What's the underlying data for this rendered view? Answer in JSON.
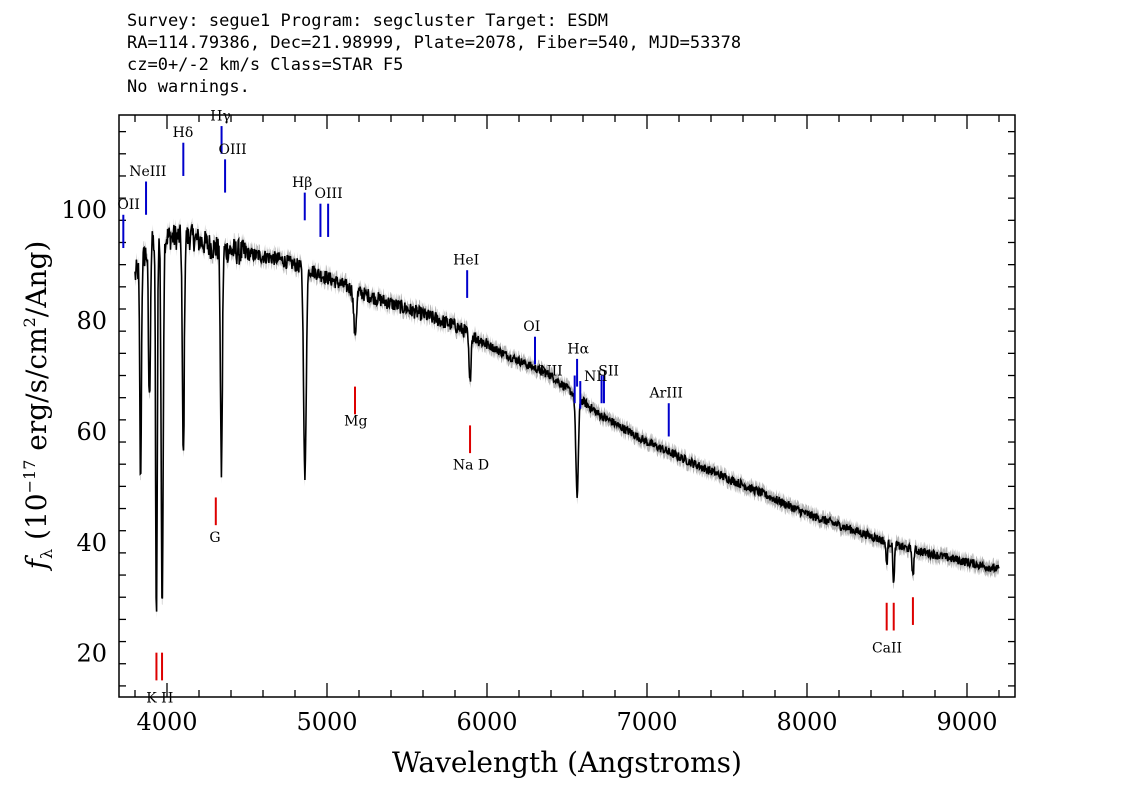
{
  "header": {
    "line1": "Survey: segue1 Program: segcluster Target: ESDM",
    "line2": "RA=114.79386, Dec=21.98999, Plate=2078, Fiber=540, MJD=53378",
    "line3": "cz=0+/-2 km/s Class=STAR F5",
    "line4": "No warnings."
  },
  "chart_data": {
    "type": "line",
    "title": "",
    "xlabel": "Wavelength (Angstroms)",
    "ylabel": "fλ (10^-17 erg/s/cm^2/Ang)",
    "xlim": [
      3700,
      9300
    ],
    "ylim": [
      12,
      117
    ],
    "x_ticks": [
      4000,
      5000,
      6000,
      7000,
      8000,
      9000
    ],
    "y_ticks": [
      20,
      40,
      60,
      80,
      100
    ],
    "grid": false,
    "colors": {
      "spectrum": "#000000",
      "error": "#b4b4b4",
      "emission": "#0000cc",
      "absorption": "#dd0000"
    },
    "continuum": [
      [
        3800,
        88
      ],
      [
        3900,
        94
      ],
      [
        4000,
        95
      ],
      [
        4150,
        95
      ],
      [
        4300,
        93
      ],
      [
        4500,
        92
      ],
      [
        4700,
        91
      ],
      [
        4900,
        89
      ],
      [
        5200,
        85
      ],
      [
        5500,
        82
      ],
      [
        5800,
        79
      ],
      [
        6100,
        74
      ],
      [
        6400,
        70
      ],
      [
        6700,
        63
      ],
      [
        7000,
        58
      ],
      [
        7300,
        54
      ],
      [
        7700,
        49
      ],
      [
        8000,
        45
      ],
      [
        8300,
        42
      ],
      [
        8600,
        39
      ],
      [
        8900,
        37
      ],
      [
        9200,
        35
      ]
    ],
    "absorption_features": [
      {
        "x": 3835,
        "depth": 40,
        "width": 5
      },
      {
        "x": 3890,
        "depth": 28,
        "width": 6
      },
      {
        "x": 3934,
        "depth": 70,
        "width": 5
      },
      {
        "x": 3970,
        "depth": 68,
        "width": 6
      },
      {
        "x": 4102,
        "depth": 40,
        "width": 6
      },
      {
        "x": 4340,
        "depth": 40,
        "width": 6
      },
      {
        "x": 4862,
        "depth": 38,
        "width": 8
      },
      {
        "x": 5175,
        "depth": 8,
        "width": 8
      },
      {
        "x": 5893,
        "depth": 9,
        "width": 6
      },
      {
        "x": 6563,
        "depth": 18,
        "width": 8
      },
      {
        "x": 8498,
        "depth": 4,
        "width": 5
      },
      {
        "x": 8542,
        "depth": 7,
        "width": 5
      },
      {
        "x": 8662,
        "depth": 5,
        "width": 5
      }
    ],
    "emission_lines": [
      {
        "label": "OII",
        "x": 3727,
        "y_low": 93,
        "y_high": 99
      },
      {
        "label": "NeIII",
        "x": 3869,
        "y_low": 99,
        "y_high": 105
      },
      {
        "label": "Hδ",
        "x": 4102,
        "y_low": 106,
        "y_high": 112
      },
      {
        "label": "Hγ",
        "x": 4341,
        "y_low": 110,
        "y_high": 115
      },
      {
        "label": "OIII",
        "x": 4363,
        "y_low": 103,
        "y_high": 109
      },
      {
        "label": "Hβ",
        "x": 4861,
        "y_low": 98,
        "y_high": 103
      },
      {
        "label": "OIII",
        "x": 4959,
        "y_low": 95,
        "y_high": 101
      },
      {
        "label": "OIII",
        "x": 5007,
        "y_low": 95,
        "y_high": 101
      },
      {
        "label": "HeI",
        "x": 5876,
        "y_low": 84,
        "y_high": 89
      },
      {
        "label": "OI",
        "x": 6300,
        "y_low": 72,
        "y_high": 77
      },
      {
        "label": "NII",
        "x": 6548,
        "y_low": 65,
        "y_high": 70
      },
      {
        "label": "Hα",
        "x": 6563,
        "y_low": 68,
        "y_high": 73
      },
      {
        "label": "NII",
        "x": 6583,
        "y_low": 64,
        "y_high": 69
      },
      {
        "label": "SII",
        "x": 6716,
        "y_low": 65,
        "y_high": 70
      },
      {
        "label": "SII",
        "x": 6731,
        "y_low": 65,
        "y_high": 70
      },
      {
        "label": "ArIII",
        "x": 7136,
        "y_low": 59,
        "y_high": 65
      }
    ],
    "absorption_lines": [
      {
        "label": "K",
        "x": 3934,
        "y_low": 15,
        "y_high": 20
      },
      {
        "label": "H",
        "x": 3969,
        "y_low": 15,
        "y_high": 20
      },
      {
        "label": "G",
        "x": 4305,
        "y_low": 43,
        "y_high": 48
      },
      {
        "label": "Mg",
        "x": 5175,
        "y_low": 63,
        "y_high": 68
      },
      {
        "label": "Na D",
        "x": 5894,
        "y_low": 56,
        "y_high": 61
      },
      {
        "label": "CaII",
        "x": 8498,
        "y_low": 24,
        "y_high": 29
      },
      {
        "label": "CaII",
        "x": 8542,
        "y_low": 24,
        "y_high": 29
      },
      {
        "label": "CaII",
        "x": 8662,
        "y_low": 25,
        "y_high": 30
      }
    ],
    "emission_label_positions": [
      {
        "text": "OII",
        "x": 3760,
        "y": 100
      },
      {
        "text": "NeIII",
        "x": 3880,
        "y": 106
      },
      {
        "text": "Hδ",
        "x": 4100,
        "y": 113
      },
      {
        "text": "Hγ",
        "x": 4335,
        "y": 116
      },
      {
        "text": "OIII",
        "x": 4410,
        "y": 110
      },
      {
        "text": "Hβ",
        "x": 4845,
        "y": 104
      },
      {
        "text": "OIII",
        "x": 5010,
        "y": 102
      },
      {
        "text": "HeI",
        "x": 5870,
        "y": 90
      },
      {
        "text": "OI",
        "x": 6280,
        "y": 78
      },
      {
        "text": "NII",
        "x": 6400,
        "y": 70
      },
      {
        "text": "Hα",
        "x": 6570,
        "y": 74
      },
      {
        "text": "NII",
        "x": 6680,
        "y": 69
      },
      {
        "text": "SII",
        "x": 6760,
        "y": 70
      },
      {
        "text": "ArIII",
        "x": 7120,
        "y": 66
      }
    ],
    "absorption_label_positions": [
      {
        "text": "K H",
        "x": 3955,
        "y": 11
      },
      {
        "text": "G",
        "x": 4300,
        "y": 40
      },
      {
        "text": "Mg",
        "x": 5180,
        "y": 61
      },
      {
        "text": "Na  D",
        "x": 5900,
        "y": 53
      },
      {
        "text": "CaII",
        "x": 8500,
        "y": 20
      }
    ]
  }
}
